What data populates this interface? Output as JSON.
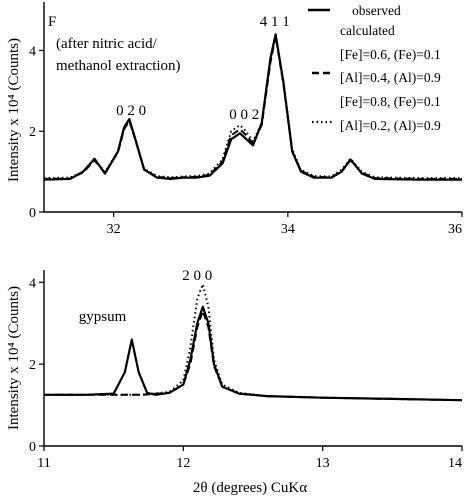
{
  "chart_data": [
    {
      "type": "line",
      "panel_label": "F",
      "note_lines": [
        "(after nitric acid/",
        "methanol extraction)"
      ],
      "xlim": [
        31.2,
        36
      ],
      "ylim": [
        0,
        5.2
      ],
      "x_ticks": [
        32,
        34,
        36
      ],
      "x_tick_labels": [
        "32",
        "34",
        "36"
      ],
      "y_ticks": [
        0,
        2,
        4
      ],
      "y_tick_labels": [
        "0",
        "2",
        "4"
      ],
      "ylabel": "Intensity x 10⁴ (Counts)",
      "xlabel": "",
      "grid": false,
      "legend_position": "top-right",
      "legend": {
        "observed": "observed",
        "calculated": "calculated",
        "dashed_lines": [
          "[Fe]=0.6, (Fe)=0.1",
          "[Al]=0.4, (Al)=0.9"
        ],
        "dotted_lines": [
          "[Fe]=0.8, (Fe)=0.1",
          "[Al]=0.2, (Al)=0.9"
        ]
      },
      "peak_labels": [
        {
          "text": "0 2 0",
          "x": 32.2,
          "y": 2.4
        },
        {
          "text": "0 0 2",
          "x": 33.5,
          "y": 2.3
        },
        {
          "text": "4 1 1",
          "x": 33.85,
          "y": 4.6
        }
      ],
      "series": [
        {
          "name": "observed",
          "style": "solid",
          "x": [
            31.2,
            31.5,
            31.65,
            31.78,
            31.9,
            32.05,
            32.12,
            32.18,
            32.25,
            32.35,
            32.5,
            32.65,
            32.8,
            32.95,
            33.1,
            33.25,
            33.35,
            33.45,
            33.5,
            33.6,
            33.7,
            33.8,
            33.86,
            33.95,
            34.05,
            34.15,
            34.3,
            34.5,
            34.62,
            34.72,
            34.85,
            35.0,
            35.5,
            36.0
          ],
          "y": [
            0.8,
            0.82,
            1.0,
            1.32,
            0.95,
            1.5,
            2.1,
            2.3,
            1.8,
            1.05,
            0.85,
            0.82,
            0.85,
            0.85,
            0.9,
            1.2,
            1.8,
            1.95,
            1.85,
            1.65,
            2.2,
            3.8,
            4.4,
            3.2,
            1.5,
            1.0,
            0.85,
            0.85,
            1.0,
            1.3,
            0.95,
            0.82,
            0.8,
            0.8
          ]
        },
        {
          "name": "[Fe]=0.6, (Fe)=0.1 [Al]=0.4, (Al)=0.9",
          "style": "dashed",
          "x": [
            31.2,
            31.5,
            31.65,
            31.78,
            31.9,
            32.05,
            32.12,
            32.18,
            32.25,
            32.35,
            32.5,
            32.65,
            32.8,
            32.95,
            33.1,
            33.25,
            33.35,
            33.45,
            33.5,
            33.6,
            33.7,
            33.8,
            33.86,
            33.95,
            34.05,
            34.15,
            34.3,
            34.5,
            34.62,
            34.72,
            34.85,
            35.0,
            35.5,
            36.0
          ],
          "y": [
            0.82,
            0.83,
            0.98,
            1.28,
            0.97,
            1.48,
            2.05,
            2.25,
            1.78,
            1.05,
            0.87,
            0.84,
            0.86,
            0.87,
            0.92,
            1.25,
            1.9,
            2.05,
            1.95,
            1.7,
            2.15,
            3.7,
            4.35,
            3.15,
            1.5,
            1.02,
            0.87,
            0.86,
            1.02,
            1.28,
            0.97,
            0.84,
            0.82,
            0.82
          ]
        },
        {
          "name": "[Fe]=0.8, (Fe)=0.1 [Al]=0.2, (Al)=0.9",
          "style": "dotted",
          "x": [
            31.2,
            31.5,
            31.65,
            31.78,
            31.9,
            32.05,
            32.12,
            32.18,
            32.25,
            32.35,
            32.5,
            32.65,
            32.8,
            32.95,
            33.1,
            33.25,
            33.35,
            33.45,
            33.5,
            33.6,
            33.7,
            33.8,
            33.86,
            33.95,
            34.05,
            34.15,
            34.3,
            34.5,
            34.62,
            34.72,
            34.85,
            35.0,
            35.5,
            36.0
          ],
          "y": [
            0.84,
            0.85,
            1.0,
            1.3,
            0.99,
            1.5,
            2.08,
            2.27,
            1.8,
            1.07,
            0.89,
            0.86,
            0.88,
            0.89,
            0.95,
            1.3,
            2.0,
            2.15,
            2.05,
            1.75,
            2.2,
            3.75,
            4.4,
            3.2,
            1.55,
            1.04,
            0.89,
            0.88,
            1.05,
            1.32,
            0.99,
            0.86,
            0.84,
            0.84
          ]
        }
      ]
    },
    {
      "type": "line",
      "xlim": [
        11,
        14
      ],
      "ylim": [
        0,
        4.3
      ],
      "x_ticks": [
        11,
        12,
        13,
        14
      ],
      "x_tick_labels": [
        "11",
        "12",
        "13",
        "14"
      ],
      "y_ticks": [
        0,
        2,
        4
      ],
      "y_tick_labels": [
        "0",
        "2",
        "4"
      ],
      "ylabel": "Intensity x 10⁴ (Counts)",
      "xlabel": "2θ (degrees) CuKα",
      "grid": false,
      "annotations": [
        {
          "text": "gypsum",
          "x": 11.42,
          "y": 3.05
        },
        {
          "text": "2 0 0",
          "x": 12.1,
          "y": 4.05
        }
      ],
      "series": [
        {
          "name": "observed",
          "style": "solid",
          "x": [
            11.0,
            11.3,
            11.5,
            11.58,
            11.63,
            11.68,
            11.74,
            11.8,
            11.9,
            12.0,
            12.05,
            12.1,
            12.14,
            12.18,
            12.22,
            12.28,
            12.4,
            12.6,
            13.0,
            13.5,
            14.0
          ],
          "y": [
            1.25,
            1.25,
            1.28,
            1.8,
            2.6,
            1.8,
            1.3,
            1.25,
            1.3,
            1.5,
            2.1,
            3.0,
            3.4,
            3.0,
            2.0,
            1.45,
            1.28,
            1.22,
            1.18,
            1.15,
            1.12
          ]
        },
        {
          "name": "[Fe]=0.6, (Fe)=0.1 [Al]=0.4, (Al)=0.9",
          "style": "dashed",
          "x": [
            11.0,
            11.3,
            11.5,
            11.7,
            11.9,
            12.0,
            12.05,
            12.1,
            12.14,
            12.18,
            12.22,
            12.28,
            12.4,
            12.6,
            13.0,
            13.5,
            14.0
          ],
          "y": [
            1.25,
            1.25,
            1.25,
            1.25,
            1.3,
            1.5,
            2.0,
            2.9,
            3.3,
            2.9,
            1.95,
            1.45,
            1.28,
            1.22,
            1.18,
            1.15,
            1.12
          ]
        },
        {
          "name": "[Fe]=0.8, (Fe)=0.1 [Al]=0.2, (Al)=0.9",
          "style": "dotted",
          "x": [
            11.0,
            11.3,
            11.5,
            11.7,
            11.9,
            12.0,
            12.05,
            12.1,
            12.14,
            12.18,
            12.22,
            12.28,
            12.4,
            12.6,
            13.0,
            13.5,
            14.0
          ],
          "y": [
            1.25,
            1.25,
            1.25,
            1.25,
            1.32,
            1.6,
            2.4,
            3.6,
            3.95,
            3.4,
            2.1,
            1.5,
            1.3,
            1.22,
            1.18,
            1.15,
            1.12
          ]
        }
      ]
    }
  ]
}
